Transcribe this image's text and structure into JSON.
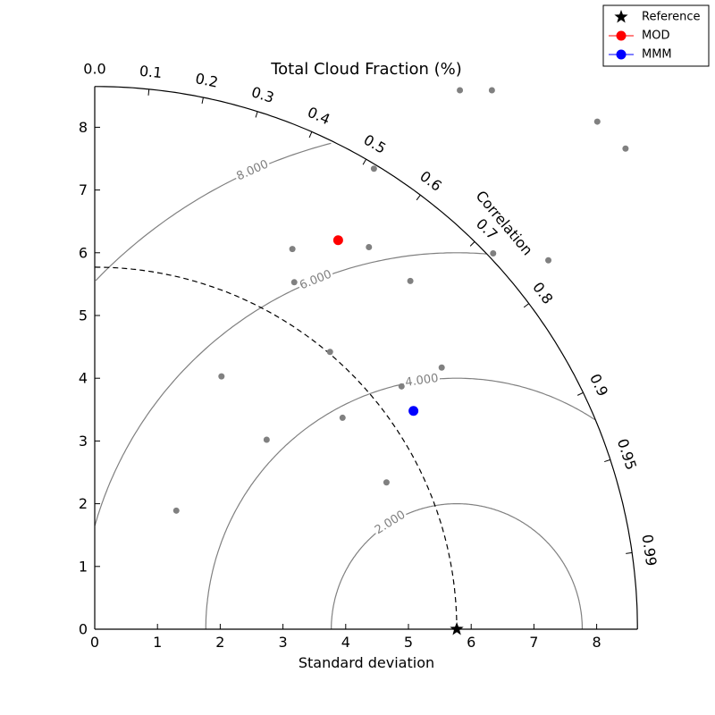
{
  "chart_data": {
    "type": "scatter",
    "subtype": "taylor-diagram",
    "title": "Total Cloud Fraction (%)",
    "xlabel": "Standard deviation",
    "ylabel": "",
    "corr_axis_label": "Correlation",
    "std_range": [
      0,
      8.65
    ],
    "x_ticks": [
      "0",
      "1",
      "2",
      "3",
      "4",
      "5",
      "6",
      "7",
      "8"
    ],
    "y_ticks": [
      "0",
      "1",
      "2",
      "3",
      "4",
      "5",
      "6",
      "7",
      "8"
    ],
    "correlation_ticks": [
      "0.0",
      "0.1",
      "0.2",
      "0.3",
      "0.4",
      "0.5",
      "0.6",
      "0.7",
      "0.8",
      "0.9",
      "0.95",
      "0.99"
    ],
    "rms_contours": [
      "2.000",
      "4.000",
      "6.000",
      "8.000"
    ],
    "reference": {
      "name": "Reference",
      "std": 5.77,
      "color": "#000000",
      "marker": "star"
    },
    "series": [
      {
        "name": "MOD",
        "color": "#ff0000",
        "points": [
          {
            "x": 3.88,
            "y": 6.2
          }
        ]
      },
      {
        "name": "MMM",
        "color": "#0000ff",
        "points": [
          {
            "x": 5.08,
            "y": 3.48
          }
        ]
      },
      {
        "name": "",
        "color": "#808080",
        "points": [
          {
            "x": 5.82,
            "y": 8.59
          },
          {
            "x": 6.33,
            "y": 8.59
          },
          {
            "x": 8.01,
            "y": 8.09
          },
          {
            "x": 8.46,
            "y": 7.66
          },
          {
            "x": 4.45,
            "y": 7.34
          },
          {
            "x": 3.15,
            "y": 6.06
          },
          {
            "x": 4.37,
            "y": 6.09
          },
          {
            "x": 6.35,
            "y": 5.99
          },
          {
            "x": 7.23,
            "y": 5.88
          },
          {
            "x": 3.18,
            "y": 5.53
          },
          {
            "x": 5.03,
            "y": 5.55
          },
          {
            "x": 3.75,
            "y": 4.42
          },
          {
            "x": 5.53,
            "y": 4.17
          },
          {
            "x": 2.02,
            "y": 4.03
          },
          {
            "x": 4.89,
            "y": 3.87
          },
          {
            "x": 3.95,
            "y": 3.37
          },
          {
            "x": 2.74,
            "y": 3.02
          },
          {
            "x": 4.65,
            "y": 2.34
          },
          {
            "x": 1.3,
            "y": 1.89
          }
        ]
      }
    ],
    "legend": {
      "position": "top-right",
      "entries": [
        "Reference",
        "MOD",
        "MMM"
      ]
    }
  }
}
